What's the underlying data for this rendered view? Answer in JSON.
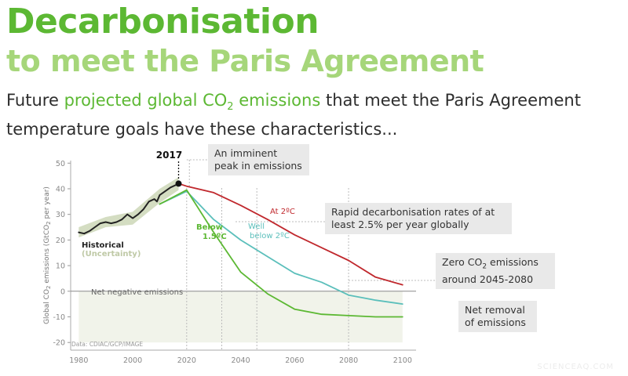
{
  "header": {
    "title_line1": "Decarbonisation",
    "title_line2": "to meet the Paris Agreement",
    "subtitle_before": "Future ",
    "subtitle_highlight": "projected global CO",
    "subtitle_highlight_sub": "2",
    "subtitle_highlight_after": " emissions",
    "subtitle_after": " that meet the Paris Agreement temperature goals have these characteristics..."
  },
  "callouts": {
    "peak": "An imminent peak in emissions",
    "rates": "Rapid decarbonisation rates of at least 2.5% per year globally",
    "zero_before": "Zero CO",
    "zero_sub": "2",
    "zero_after": " emissions around 2045-2080",
    "removal": "Net removal of emissions"
  },
  "watermark": "SCIENCEAQ.COM",
  "colors": {
    "green": "#5cb833",
    "light_green": "#a6d67a",
    "historical": "#222222",
    "uncertainty": "#d4ddc2",
    "red": "#c0282d",
    "teal": "#5bbfbb",
    "negative_band": "#f1f3ea",
    "callout_bg": "#e9e9e9"
  },
  "chart_data": {
    "type": "line",
    "ylabel_main": "Global CO",
    "ylabel_sub": "2",
    "ylabel_after": " emissions (GtCO",
    "ylabel_sub2": "2",
    "ylabel_end": " per year)",
    "xlim": [
      1977,
      2105
    ],
    "ylim": [
      -23,
      51
    ],
    "xticks": [
      "1980",
      "2000",
      "2020",
      "2040",
      "2060",
      "2080",
      "2100"
    ],
    "xtick_values": [
      1980,
      2000,
      2020,
      2040,
      2060,
      2080,
      2100
    ],
    "yticks": [
      "50",
      "40",
      "30",
      "20",
      "10",
      "0",
      "-10",
      "-20"
    ],
    "ytick_values": [
      50,
      40,
      30,
      20,
      10,
      0,
      -10,
      -20
    ],
    "annotation_year": "2017",
    "annotation_point": [
      2017,
      42
    ],
    "net_negative_label": "Net negative emissions",
    "source": "Data: CDIAC/GCP/IMAGE",
    "historical_label": "Historical",
    "uncertainty_label": "(Uncertainty)",
    "series": [
      {
        "name": "Historical",
        "x": [
          1980,
          1982,
          1984,
          1986,
          1988,
          1990,
          1992,
          1994,
          1996,
          1998,
          2000,
          2002,
          2004,
          2006,
          2008,
          2009,
          2010,
          2012,
          2014,
          2016,
          2017
        ],
        "y": [
          23,
          22.5,
          23.5,
          25,
          26.5,
          27,
          26.5,
          27,
          28,
          30,
          28.5,
          30,
          32,
          35,
          36,
          35,
          37.5,
          39,
          40.5,
          41.5,
          42
        ]
      },
      {
        "name": "At 2ºC",
        "x": [
          2017,
          2020,
          2030,
          2040,
          2050,
          2060,
          2070,
          2080,
          2090,
          2100
        ],
        "y": [
          42,
          41,
          38.5,
          33.5,
          28,
          22,
          17,
          12,
          5.5,
          2.5
        ]
      },
      {
        "name": "Well below 2ºC",
        "x": [
          2010,
          2020,
          2030,
          2040,
          2050,
          2060,
          2070,
          2080,
          2090,
          2100
        ],
        "y": [
          34,
          39,
          28,
          20,
          13.5,
          7,
          3.5,
          -1.5,
          -3.5,
          -5
        ]
      },
      {
        "name": "Below 1.5ºC",
        "x": [
          2010,
          2020,
          2030,
          2040,
          2050,
          2060,
          2070,
          2080,
          2090,
          2100
        ],
        "y": [
          34,
          39.5,
          23,
          7.5,
          -1,
          -7,
          -9,
          -9.5,
          -10,
          -10
        ]
      }
    ],
    "uncertainty_band": {
      "x": [
        1980,
        1990,
        2000,
        2010,
        2017
      ],
      "upper": [
        25,
        29,
        31,
        40,
        44.5
      ],
      "lower": [
        21,
        25,
        26,
        34.5,
        39.5
      ]
    },
    "guide_lines_x": [
      2020,
      2033,
      2046,
      2080
    ]
  }
}
